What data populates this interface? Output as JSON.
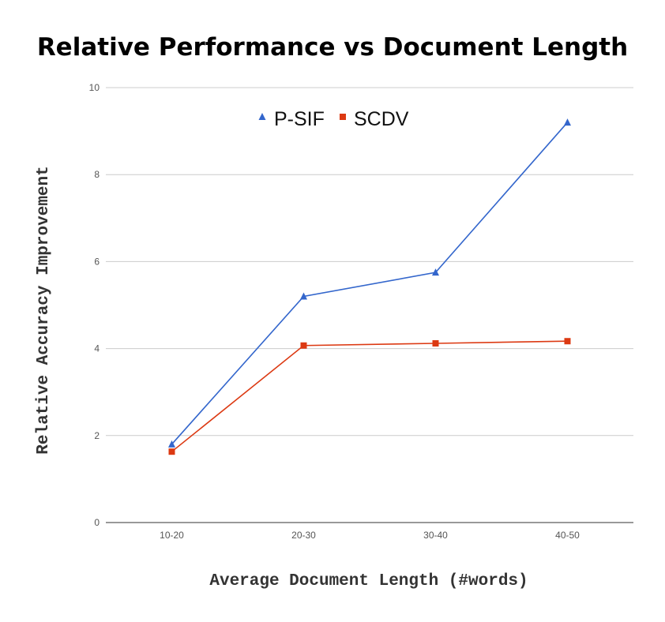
{
  "chart_data": {
    "type": "line",
    "title": "Relative Performance vs Document Length",
    "xlabel": "Average Document Length (#words)",
    "ylabel": "Relative Accuracy Improvement",
    "categories": [
      "10-20",
      "20-30",
      "30-40",
      "40-50"
    ],
    "ylim": [
      0,
      10
    ],
    "yticks": [
      0,
      2,
      4,
      6,
      8,
      10
    ],
    "grid": true,
    "legend_position": "top-center",
    "series": [
      {
        "name": "P-SIF",
        "marker": "triangle",
        "color": "#3366cc",
        "values": [
          1.8,
          5.2,
          5.75,
          9.2
        ]
      },
      {
        "name": "SCDV",
        "marker": "square",
        "color": "#dc3912",
        "values": [
          1.63,
          4.07,
          4.12,
          4.17
        ]
      }
    ]
  }
}
